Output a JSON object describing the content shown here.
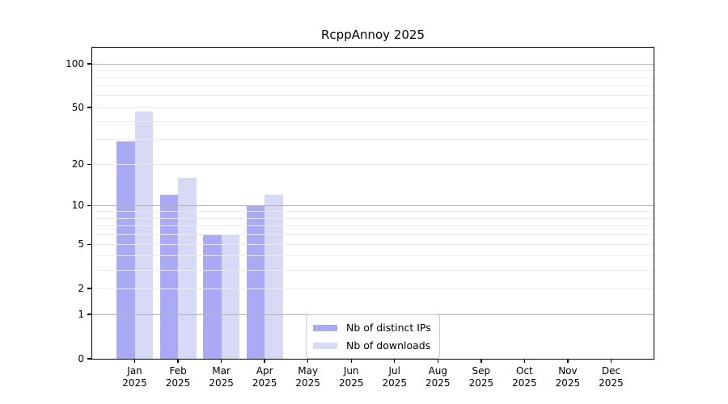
{
  "page": {
    "background": "#ffffff"
  },
  "chart_data": {
    "type": "bar",
    "title": "RcppAnnoy 2025",
    "categories": [
      "Jan 2025",
      "Feb 2025",
      "Mar 2025",
      "Apr 2025",
      "May 2025",
      "Jun 2025",
      "Jul 2025",
      "Aug 2025",
      "Sep 2025",
      "Oct 2025",
      "Nov 2025",
      "Dec 2025"
    ],
    "series": [
      {
        "name": "Nb of distinct IPs",
        "color": "#a9a9f6",
        "values": [
          29,
          12,
          6,
          10,
          0,
          0,
          0,
          0,
          0,
          0,
          0,
          0
        ]
      },
      {
        "name": "Nb of downloads",
        "color": "#d8d8f7",
        "values": [
          47,
          16,
          6,
          12,
          0,
          0,
          0,
          0,
          0,
          0,
          0,
          0
        ]
      }
    ],
    "xlabel": "",
    "ylabel": "",
    "yaxis": {
      "scale": "log1p",
      "ticks": [
        0,
        1,
        2,
        5,
        10,
        20,
        50,
        100
      ],
      "ylim": [
        0,
        130
      ],
      "major_gridlines": [
        1,
        10,
        100
      ],
      "minor_gridlines": [
        2,
        3,
        4,
        5,
        6,
        7,
        8,
        9,
        20,
        30,
        40,
        50,
        60,
        70,
        80,
        90
      ],
      "major_grid_color": "#b3b3b3",
      "minor_grid_color": "#ebebeb"
    },
    "grid": true,
    "legend": {
      "position": "lower center",
      "entries": [
        "Nb of distinct IPs",
        "Nb of downloads"
      ]
    }
  }
}
